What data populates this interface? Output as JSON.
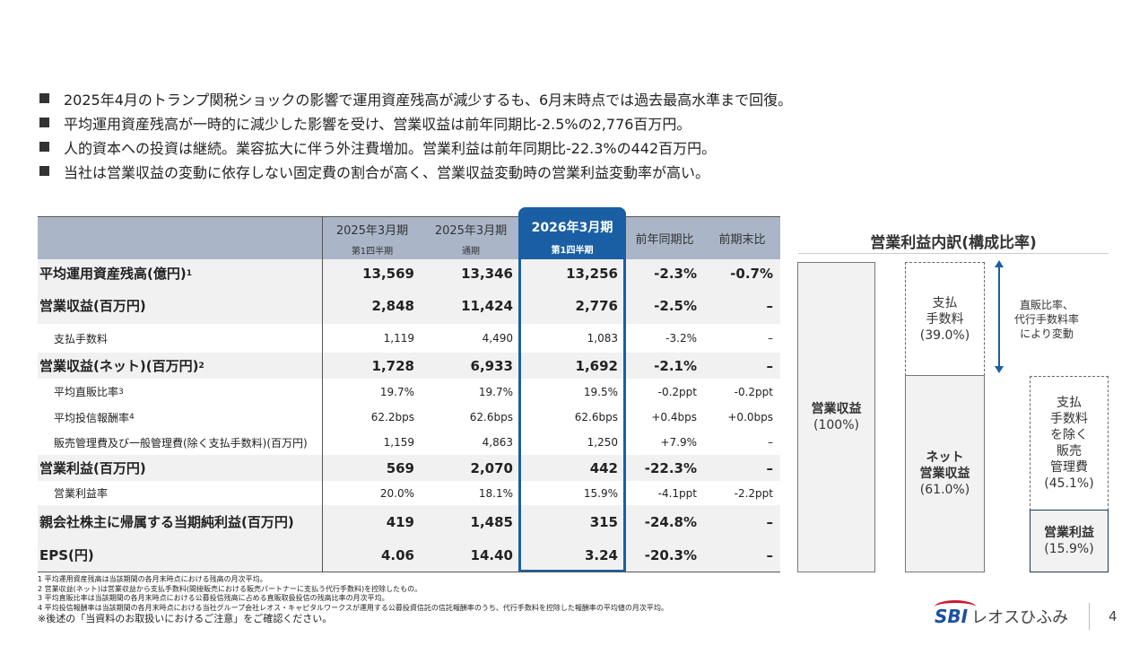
{
  "bullets": [
    "2025年4月のトランプ関税ショックの影響で運用資産残高が減少するも、6月末時点では過去最高水準まで回復。",
    "平均運用資産残高が一時的に減少した影響を受け、営業収益は前年同期比-2.5%の2,776百万円。",
    "人的資本への投資は継続。業容拡大に伴う外注費増加。営業利益は前年同期比-22.3%の442百万円。",
    "当社は営業収益の変動に依存しない固定費の割合が高く、営業収益変動時の営業利益変動率が高い。"
  ],
  "table": {
    "columns": [
      {
        "title": "2025年3月期",
        "sub": "第1四半期"
      },
      {
        "title": "2025年3月期",
        "sub": "通期"
      },
      {
        "title": "2026年3月期",
        "sub": "第1四半期"
      },
      {
        "title": "前年同期比",
        "sub": ""
      },
      {
        "title": "前期末比",
        "sub": ""
      }
    ],
    "rows": [
      {
        "label": "平均運用資産残高(億円)",
        "sup": "1",
        "cells": [
          "13,569",
          "13,346",
          "13,256",
          "-2.3%",
          "-0.7%"
        ]
      },
      {
        "label": "営業収益(百万円)",
        "sup": "",
        "cells": [
          "2,848",
          "11,424",
          "2,776",
          "-2.5%",
          "–"
        ]
      },
      {
        "label": "支払手数料",
        "sup": "",
        "cells": [
          "1,119",
          "4,490",
          "1,083",
          "-3.2%",
          "–"
        ]
      },
      {
        "label": "営業収益(ネット)(百万円)",
        "sup": "2",
        "cells": [
          "1,728",
          "6,933",
          "1,692",
          "-2.1%",
          "–"
        ]
      },
      {
        "label": "平均直販比率",
        "sup": "3",
        "cells": [
          "19.7%",
          "19.7%",
          "19.5%",
          "-0.2ppt",
          "-0.2ppt"
        ]
      },
      {
        "label": "平均投信報酬率",
        "sup": "4",
        "cells": [
          "62.2bps",
          "62.6bps",
          "62.6bps",
          "+0.4bps",
          "+0.0bps"
        ]
      },
      {
        "label": "販売管理費及び一般管理費(除く支払手数料)(百万円)",
        "sup": "",
        "cells": [
          "1,159",
          "4,863",
          "1,250",
          "+7.9%",
          "–"
        ]
      },
      {
        "label": "営業利益(百万円)",
        "sup": "",
        "cells": [
          "569",
          "2,070",
          "442",
          "-22.3%",
          "–"
        ]
      },
      {
        "label": "営業利益率",
        "sup": "",
        "cells": [
          "20.0%",
          "18.1%",
          "15.9%",
          "-4.1ppt",
          "-2.2ppt"
        ]
      },
      {
        "label": "親会社株主に帰属する当期純利益(百万円)",
        "sup": "",
        "cells": [
          "419",
          "1,485",
          "315",
          "-24.8%",
          "–"
        ]
      },
      {
        "label": "EPS(円)",
        "sup": "",
        "cells": [
          "4.06",
          "14.40",
          "3.24",
          "-20.3%",
          "–"
        ]
      }
    ]
  },
  "notes": [
    "1 平均運用資産残高は当該期間の各月末時点における残高の月次平均。",
    "2 営業収益(ネット)は営業収益から支払手数料(間接販売における販売パートナーに支払う代行手数料)を控除したもの。",
    "3 平均直販比率は当該期間の各月末時点における公募投信残高に占める直販取扱投信の残高比率の月次平均。",
    "4 平均投信報酬率は当該期間の各月末時点における当社グループ会社レオス・キャピタルワークスが運用する公募投資信託の信託報酬率のうち、代行手数料を控除した報酬率の平均値の月次平均。"
  ],
  "caution": "※後述の「当資料のお取扱いにおけるご注意」をご確認ください。",
  "diagram": {
    "title": "営業利益内訳(構成比率)",
    "revenue": {
      "label": "営業収益",
      "pct": "(100%)"
    },
    "fee": {
      "label1": "支払",
      "label2": "手数料",
      "pct": "(39.0%)"
    },
    "net": {
      "label1": "ネット",
      "label2": "営業収益",
      "pct": "(61.0%)"
    },
    "sga": {
      "l1": "支払",
      "l2": "手数料",
      "l3": "を除く",
      "l4": "販売",
      "l5": "管理費",
      "pct": "(45.1%)"
    },
    "profit": {
      "label": "営業利益",
      "pct": "(15.9%)"
    },
    "arrow_note": {
      "l1": "直販比率、",
      "l2": "代行手数料率",
      "l3": "により変動"
    },
    "accent": "#1a5fa3"
  },
  "footer": {
    "logo_sbi": "SBI",
    "logo_jp": "レオスひふみ",
    "page": "4"
  }
}
